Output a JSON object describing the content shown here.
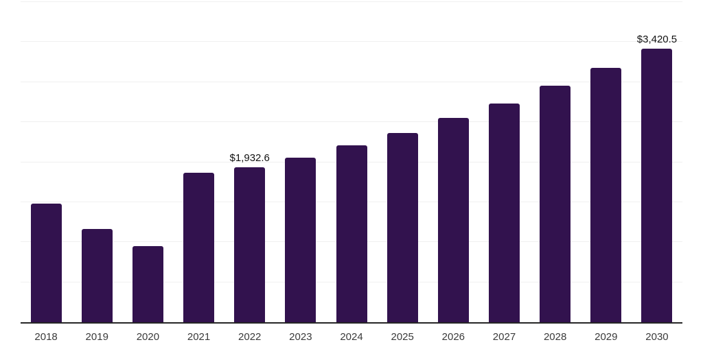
{
  "chart_data": {
    "type": "bar",
    "title": "",
    "xlabel": "",
    "ylabel": "",
    "categories": [
      "2018",
      "2019",
      "2020",
      "2021",
      "2022",
      "2023",
      "2024",
      "2025",
      "2026",
      "2027",
      "2028",
      "2029",
      "2030"
    ],
    "values": [
      1481,
      1164,
      949,
      1864,
      1932.6,
      2056,
      2213,
      2368,
      2550,
      2734,
      2957,
      3174,
      3420.5
    ],
    "value_labels": [
      "",
      "",
      "",
      "",
      "$1,932.6",
      "",
      "",
      "",
      "",
      "",
      "",
      "",
      "$3,420.5"
    ],
    "ylim": [
      0,
      4000
    ],
    "gridline_interval": 500,
    "grid": "horizontal-only",
    "legend": "none",
    "colors": {
      "bar": "#32124e",
      "gridline": "#f0f0f0",
      "axis_line": "#262626",
      "tick_label": "#3a3a3a",
      "value_label": "#111111",
      "background": "#ffffff"
    }
  }
}
